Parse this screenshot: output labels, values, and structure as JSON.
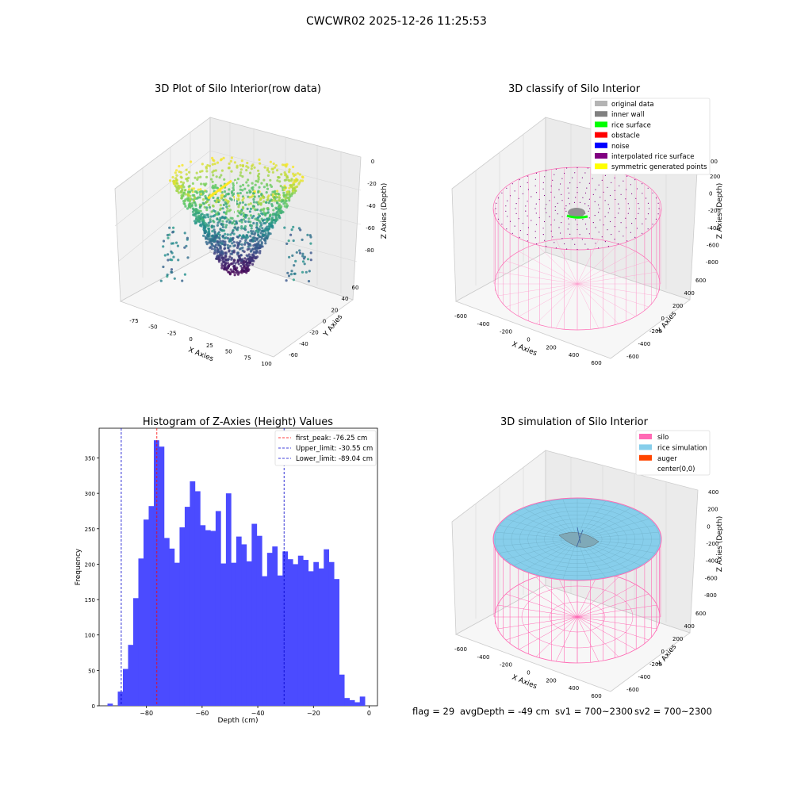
{
  "figure": {
    "suptitle": "CWCWR02 2025-12-26 11:25:53",
    "footer": {
      "flag": "flag = 29",
      "avg_depth": "avgDepth = -49 cm",
      "sv1": "sv1 = 700~2300",
      "sv2": "sv2 = 700~2300"
    }
  },
  "panels": {
    "raw": {
      "title": "3D Plot of Silo Interior(row data)",
      "xlabel": "X Axies",
      "ylabel": "Y Axies",
      "zlabel": "Z Axies (Depth)",
      "xticks": [
        "-75",
        "-50",
        "-25",
        "0",
        "25",
        "50",
        "75",
        "100"
      ],
      "yticks": [
        "-60",
        "-40",
        "-20",
        "0",
        "20",
        "40",
        "60"
      ],
      "zticks": [
        "0",
        "-20",
        "-40",
        "-60",
        "-80"
      ]
    },
    "classify": {
      "title": "3D classify of Silo Interior",
      "xlabel": "X Axies",
      "ylabel": "Y Axies",
      "zlabel": "Z Axies (Depth)",
      "xticks": [
        "-600",
        "-400",
        "-200",
        "0",
        "200",
        "400",
        "600"
      ],
      "yticks": [
        "600",
        "400",
        "200",
        "0",
        "-200",
        "-400",
        "-600"
      ],
      "zticks": [
        "200",
        "0",
        "-200",
        "-400",
        "-600",
        "-800"
      ],
      "zticks_partial": [
        "00"
      ],
      "legend": [
        {
          "label": "original data",
          "color": "#b4b4b4"
        },
        {
          "label": "inner wall",
          "color": "#808080"
        },
        {
          "label": "rice surface",
          "color": "#00ff00"
        },
        {
          "label": "obstacle",
          "color": "#ff0000"
        },
        {
          "label": "noise",
          "color": "#0000ff"
        },
        {
          "label": "interpolated rice surface",
          "color": "#800080"
        },
        {
          "label": "symmetric generated points",
          "color": "#ffff00"
        }
      ]
    },
    "simulation": {
      "title": "3D simulation of Silo Interior",
      "xlabel": "X Axies",
      "ylabel": "Y Axies",
      "zlabel": "Z Axies (Depth)",
      "xticks": [
        "-600",
        "-400",
        "-200",
        "0",
        "200",
        "400",
        "600"
      ],
      "yticks": [
        "600",
        "400",
        "200",
        "0",
        "-200",
        "-400",
        "-600"
      ],
      "zticks": [
        "400",
        "200",
        "0",
        "-200",
        "-400",
        "-600",
        "-800"
      ],
      "legend": [
        {
          "label": "silo",
          "color": "#ff69b4"
        },
        {
          "label": "rice simulation",
          "color": "#87ceeb"
        },
        {
          "label": "auger",
          "color": "#ff4500"
        },
        {
          "label": "center(0,0)",
          "color": ""
        }
      ]
    }
  },
  "chart_data": [
    {
      "type": "scatter",
      "title": "3D Plot of Silo Interior(row data)",
      "xlabel": "X Axies",
      "ylabel": "Y Axies",
      "zlabel": "Z Axies (Depth)",
      "xlim": [
        -90,
        100
      ],
      "ylim": [
        -65,
        65
      ],
      "zlim": [
        -95,
        0
      ],
      "colormap": "viridis",
      "grid": true
    },
    {
      "type": "scatter",
      "title": "3D classify of Silo Interior",
      "xlabel": "X Axies",
      "ylabel": "Y Axies",
      "zlabel": "Z Axies (Depth)",
      "xlim": [
        -650,
        650
      ],
      "ylim": [
        -650,
        650
      ],
      "zlim": [
        -900,
        300
      ],
      "legend_position": "top-right",
      "grid": true
    },
    {
      "type": "histogram",
      "title": "Histogram of Z-Axies (Height) Values",
      "xlabel": "Depth (cm)",
      "ylabel": "Frequency",
      "xlim": [
        -97,
        3
      ],
      "ylim": [
        0,
        392
      ],
      "xticks": [
        -80,
        -60,
        -40,
        -20,
        0
      ],
      "yticks": [
        0,
        50,
        100,
        150,
        200,
        250,
        300,
        350
      ],
      "bin_start": -94,
      "bin_width": 1.85,
      "counts": [
        3,
        0,
        20,
        52,
        86,
        152,
        208,
        263,
        282,
        375,
        366,
        237,
        222,
        202,
        252,
        281,
        317,
        303,
        255,
        248,
        247,
        275,
        201,
        300,
        202,
        239,
        228,
        204,
        257,
        240,
        183,
        216,
        225,
        184,
        218,
        207,
        200,
        212,
        206,
        190,
        203,
        194,
        221,
        203,
        179,
        44,
        11,
        8,
        5,
        13
      ],
      "color": "#4b4bff",
      "vlines": [
        {
          "label": "first_peak: -76.25 cm",
          "x": -76.25,
          "color": "#ff0000"
        },
        {
          "label": "Upper_limit: -30.55 cm",
          "x": -30.55,
          "color": "#0000cc"
        },
        {
          "label": "Lower_limit: -89.04 cm",
          "x": -89.04,
          "color": "#0000cc"
        }
      ],
      "legend_position": "top-right"
    },
    {
      "type": "surface",
      "title": "3D simulation of Silo Interior",
      "xlabel": "X Axies",
      "ylabel": "Y Axies",
      "zlabel": "Z Axies (Depth)",
      "xlim": [
        -650,
        650
      ],
      "ylim": [
        -650,
        650
      ],
      "zlim": [
        -900,
        450
      ],
      "legend_position": "top-right",
      "grid": true
    }
  ]
}
